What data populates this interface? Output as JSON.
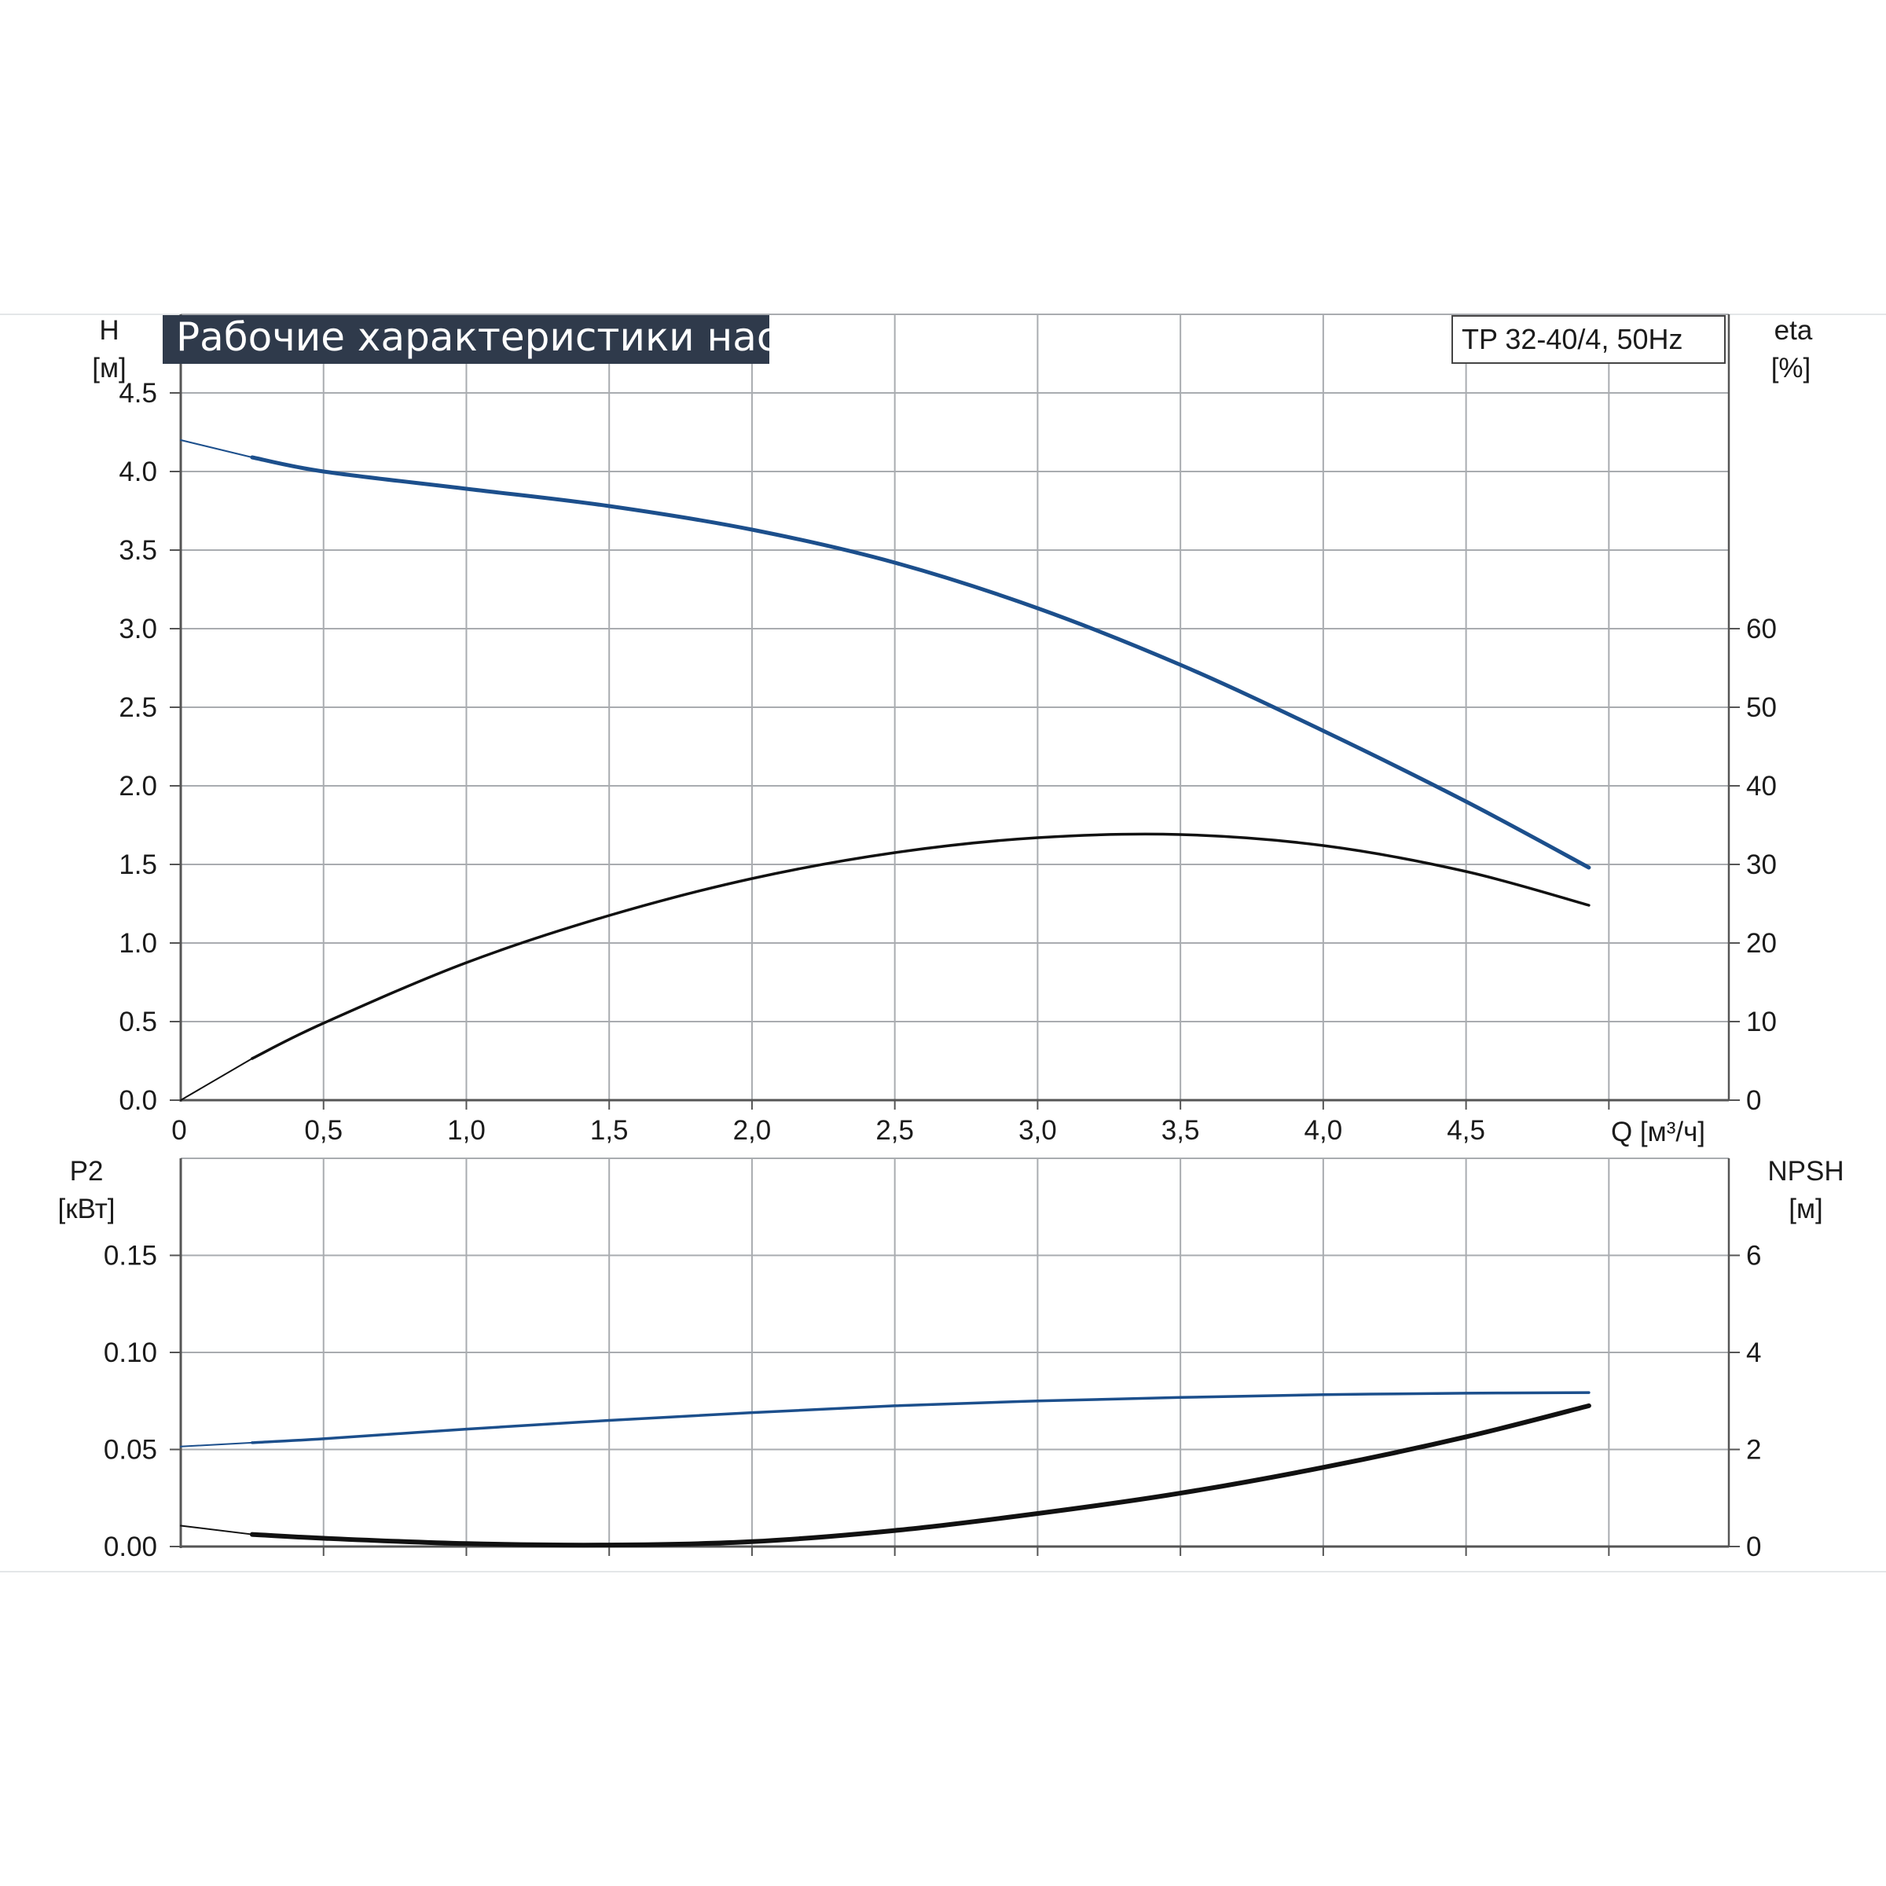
{
  "chart_data": {
    "title": "Рабочие характеристики насоса",
    "model": "TP 32-40/4, 50Hz",
    "colors": {
      "blue": "#1c4f8c",
      "black": "#111111",
      "grid": "#a9acb0",
      "title_bg": "#2f3a4b"
    },
    "x_axis": {
      "label": "Q [м³/ч]",
      "range": [
        0,
        5.42
      ],
      "ticks": [
        {
          "v": 0,
          "t": "0"
        },
        {
          "v": 0.5,
          "t": "0,5"
        },
        {
          "v": 1.0,
          "t": "1,0"
        },
        {
          "v": 1.5,
          "t": "1,5"
        },
        {
          "v": 2.0,
          "t": "2,0"
        },
        {
          "v": 2.5,
          "t": "2,5"
        },
        {
          "v": 3.0,
          "t": "3,0"
        },
        {
          "v": 3.5,
          "t": "3,5"
        },
        {
          "v": 4.0,
          "t": "4,0"
        },
        {
          "v": 4.5,
          "t": "4,5"
        }
      ],
      "grid": [
        0.5,
        1.0,
        1.5,
        2.0,
        2.5,
        3.0,
        3.5,
        4.0,
        4.5,
        5.0
      ]
    },
    "top_panel": {
      "left_axis": {
        "label": "H",
        "unit": "[м]",
        "range": [
          0,
          5.0
        ],
        "ticks": [
          {
            "v": 0,
            "t": "0.0"
          },
          {
            "v": 0.5,
            "t": "0.5"
          },
          {
            "v": 1.0,
            "t": "1.0"
          },
          {
            "v": 1.5,
            "t": "1.5"
          },
          {
            "v": 2.0,
            "t": "2.0"
          },
          {
            "v": 2.5,
            "t": "2.5"
          },
          {
            "v": 3.0,
            "t": "3.0"
          },
          {
            "v": 3.5,
            "t": "3.5"
          },
          {
            "v": 4.0,
            "t": "4.0"
          },
          {
            "v": 4.5,
            "t": "4.5"
          }
        ],
        "grid": [
          0.5,
          1.0,
          1.5,
          2.0,
          2.5,
          3.0,
          3.5,
          4.0,
          4.5,
          5.0
        ]
      },
      "right_axis": {
        "label": "eta",
        "unit": "[%]",
        "range": [
          0,
          100
        ],
        "ticks": [
          {
            "v": 0,
            "t": "0"
          },
          {
            "v": 10,
            "t": "10"
          },
          {
            "v": 20,
            "t": "20"
          },
          {
            "v": 30,
            "t": "30"
          },
          {
            "v": 40,
            "t": "40"
          },
          {
            "v": 50,
            "t": "50"
          },
          {
            "v": 60,
            "t": "60"
          }
        ]
      },
      "series": [
        {
          "axis": "left",
          "color": "blue",
          "width": 5,
          "lead_width": 2,
          "lead": [
            [
              0,
              4.2
            ],
            [
              0.25,
              4.09
            ]
          ],
          "points": [
            [
              0.25,
              4.09
            ],
            [
              0.5,
              4.0
            ],
            [
              1.0,
              3.89
            ],
            [
              1.5,
              3.78
            ],
            [
              2.0,
              3.63
            ],
            [
              2.5,
              3.42
            ],
            [
              3.0,
              3.13
            ],
            [
              3.5,
              2.77
            ],
            [
              4.0,
              2.35
            ],
            [
              4.5,
              1.9
            ],
            [
              4.93,
              1.48
            ]
          ]
        },
        {
          "axis": "right",
          "color": "black",
          "width": 3.5,
          "lead_width": 2,
          "lead": [
            [
              0,
              0
            ],
            [
              0.25,
              5.3
            ]
          ],
          "points": [
            [
              0.25,
              5.3
            ],
            [
              0.5,
              9.8
            ],
            [
              1.0,
              17.5
            ],
            [
              1.5,
              23.5
            ],
            [
              2.0,
              28.2
            ],
            [
              2.5,
              31.5
            ],
            [
              3.0,
              33.4
            ],
            [
              3.5,
              33.8
            ],
            [
              4.0,
              32.4
            ],
            [
              4.5,
              29.1
            ],
            [
              4.93,
              24.8
            ]
          ]
        }
      ]
    },
    "bottom_panel": {
      "left_axis": {
        "label": "P2",
        "unit": "[кВт]",
        "range": [
          0,
          0.2
        ],
        "ticks": [
          {
            "v": 0,
            "t": "0.00"
          },
          {
            "v": 0.05,
            "t": "0.05"
          },
          {
            "v": 0.1,
            "t": "0.10"
          },
          {
            "v": 0.15,
            "t": "0.15"
          }
        ],
        "grid": [
          0.05,
          0.1,
          0.15
        ]
      },
      "right_axis": {
        "label": "NPSH",
        "unit": "[м]",
        "range": [
          0,
          8
        ],
        "ticks": [
          {
            "v": 0,
            "t": "0"
          },
          {
            "v": 2,
            "t": "2"
          },
          {
            "v": 4,
            "t": "4"
          },
          {
            "v": 6,
            "t": "6"
          }
        ]
      },
      "series": [
        {
          "axis": "left",
          "color": "blue",
          "width": 3.5,
          "lead_width": 2,
          "lead": [
            [
              0,
              0.0515
            ],
            [
              0.25,
              0.0535
            ]
          ],
          "points": [
            [
              0.25,
              0.0535
            ],
            [
              0.5,
              0.0555
            ],
            [
              1.0,
              0.0605
            ],
            [
              1.5,
              0.065
            ],
            [
              2.0,
              0.069
            ],
            [
              2.5,
              0.0725
            ],
            [
              3.0,
              0.075
            ],
            [
              3.5,
              0.0768
            ],
            [
              4.0,
              0.0782
            ],
            [
              4.5,
              0.079
            ],
            [
              4.93,
              0.0793
            ]
          ]
        },
        {
          "axis": "right",
          "color": "black",
          "width": 6,
          "lead_width": 2,
          "lead": [
            [
              0,
              0.43
            ],
            [
              0.25,
              0.25
            ]
          ],
          "points": [
            [
              0.25,
              0.25
            ],
            [
              0.5,
              0.17
            ],
            [
              1.0,
              0.06
            ],
            [
              1.5,
              0.03
            ],
            [
              2.0,
              0.1
            ],
            [
              2.5,
              0.33
            ],
            [
              3.0,
              0.68
            ],
            [
              3.5,
              1.1
            ],
            [
              4.0,
              1.63
            ],
            [
              4.5,
              2.26
            ],
            [
              4.93,
              2.9
            ]
          ]
        }
      ]
    }
  }
}
